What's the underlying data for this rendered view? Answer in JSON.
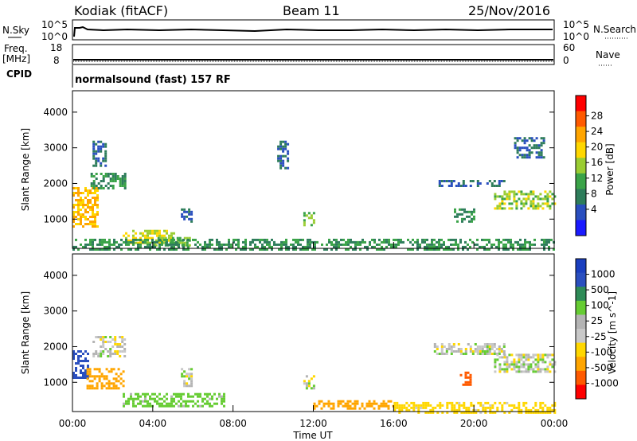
{
  "header": {
    "station": "Kodiak (fitACF)",
    "beam": "Beam 11",
    "date": "25/Nov/2016"
  },
  "strips": {
    "nsky": {
      "label": "N.Sky",
      "ticks_left": [
        "10^5",
        "10^0"
      ],
      "ticks_right": [
        "10^5",
        "10^0"
      ],
      "right_label": "N.Search"
    },
    "freq": {
      "label_line1": "Freq.",
      "label_line2": "[MHz]",
      "ticks_left": [
        "18",
        "8"
      ],
      "ticks_right": [
        "60",
        "0"
      ],
      "right_label": "Nave"
    },
    "cpid": {
      "label": "CPID",
      "text": "normalsound (fast) 157 RF"
    }
  },
  "colors": {
    "power": [
      "#1a1aff",
      "#2a4fbf",
      "#2e7d5b",
      "#3aa348",
      "#9acd32",
      "#ffd700",
      "#ffa500",
      "#ff5a00",
      "#ff0000"
    ],
    "velocity": [
      "#ff0000",
      "#ff5a00",
      "#ffa500",
      "#ffd700",
      "#c8c8c8",
      "#b4b4b4",
      "#66cc33",
      "#2e8b57",
      "#2a4fbf",
      "#1a3fbf"
    ]
  },
  "chart_data": [
    {
      "type": "heatmap",
      "title": "",
      "xlabel": "",
      "ylabel": "Slant Range [km]",
      "colorbar_label": "Power [dB]",
      "colorbar_ticks": [
        "28",
        "24",
        "20",
        "16",
        "12",
        "8",
        "4"
      ],
      "y_ticks": [
        "4000",
        "3000",
        "2000",
        "1000"
      ],
      "x_ticks": [
        "00:00",
        "04:00",
        "08:00",
        "12:00",
        "16:00",
        "20:00",
        "00:00"
      ],
      "xlim_hours": [
        0,
        24
      ],
      "ylim_km": [
        180,
        4600
      ],
      "echo_regions": [
        {
          "t0": 0.0,
          "t1": 1.3,
          "r0": 800,
          "r1": 1900,
          "value": 24
        },
        {
          "t0": 0.9,
          "t1": 2.6,
          "r0": 1850,
          "r1": 2300,
          "value": 12
        },
        {
          "t0": 1.0,
          "t1": 1.6,
          "r0": 2500,
          "r1": 3200,
          "value": 8
        },
        {
          "t0": 2.5,
          "t1": 5.0,
          "r0": 300,
          "r1": 700,
          "value": 20
        },
        {
          "t0": 4.0,
          "t1": 6.0,
          "r0": 250,
          "r1": 500,
          "value": 16
        },
        {
          "t0": 5.4,
          "t1": 5.9,
          "r0": 900,
          "r1": 1300,
          "value": 8
        },
        {
          "t0": 10.2,
          "t1": 10.7,
          "r0": 2400,
          "r1": 3200,
          "value": 8
        },
        {
          "t0": 11.5,
          "t1": 12.0,
          "r0": 800,
          "r1": 1200,
          "value": 16
        },
        {
          "t0": 18.0,
          "t1": 21.5,
          "r0": 1950,
          "r1": 2100,
          "value": 8
        },
        {
          "t0": 21.0,
          "t1": 24.0,
          "r0": 1300,
          "r1": 1800,
          "value": 18
        },
        {
          "t0": 19.0,
          "t1": 20.0,
          "r0": 900,
          "r1": 1300,
          "value": 12
        },
        {
          "t0": 22.0,
          "t1": 23.5,
          "r0": 2700,
          "r1": 3300,
          "value": 8
        },
        {
          "t0": 0.0,
          "t1": 24.0,
          "r0": 180,
          "r1": 450,
          "value": 12
        }
      ]
    },
    {
      "type": "heatmap",
      "title": "",
      "xlabel": "Time UT",
      "ylabel": "Slant Range [km]",
      "colorbar_label": "Velocity [m s^-1]",
      "colorbar_ticks": [
        "1000",
        "500",
        "100",
        "25",
        "-25",
        "-100",
        "-500",
        "-1000"
      ],
      "y_ticks": [
        "4000",
        "3000",
        "2000",
        "1000"
      ],
      "x_ticks": [
        "00:00",
        "04:00",
        "08:00",
        "12:00",
        "16:00",
        "20:00",
        "00:00"
      ],
      "xlim_hours": [
        0,
        24
      ],
      "ylim_km": [
        180,
        4600
      ],
      "echo_regions": [
        {
          "t0": 0.0,
          "t1": 0.8,
          "r0": 1100,
          "r1": 1900,
          "value": 700
        },
        {
          "t0": 0.7,
          "t1": 2.5,
          "r0": 800,
          "r1": 1400,
          "value": -300
        },
        {
          "t0": 1.0,
          "t1": 2.6,
          "r0": 1700,
          "r1": 2300,
          "value": 0
        },
        {
          "t0": 2.5,
          "t1": 7.5,
          "r0": 300,
          "r1": 700,
          "value": 60
        },
        {
          "t0": 5.4,
          "t1": 5.9,
          "r0": 900,
          "r1": 1400,
          "value": 0
        },
        {
          "t0": 11.5,
          "t1": 12.0,
          "r0": 800,
          "r1": 1200,
          "value": 0
        },
        {
          "t0": 12.0,
          "t1": 16.0,
          "r0": 250,
          "r1": 500,
          "value": -150
        },
        {
          "t0": 18.0,
          "t1": 21.5,
          "r0": 1800,
          "r1": 2100,
          "value": 0
        },
        {
          "t0": 19.3,
          "t1": 19.8,
          "r0": 900,
          "r1": 1300,
          "value": -600
        },
        {
          "t0": 21.0,
          "t1": 24.0,
          "r0": 1300,
          "r1": 1800,
          "value": 0
        },
        {
          "t0": 16.0,
          "t1": 24.0,
          "r0": 180,
          "r1": 450,
          "value": -60
        }
      ]
    }
  ]
}
